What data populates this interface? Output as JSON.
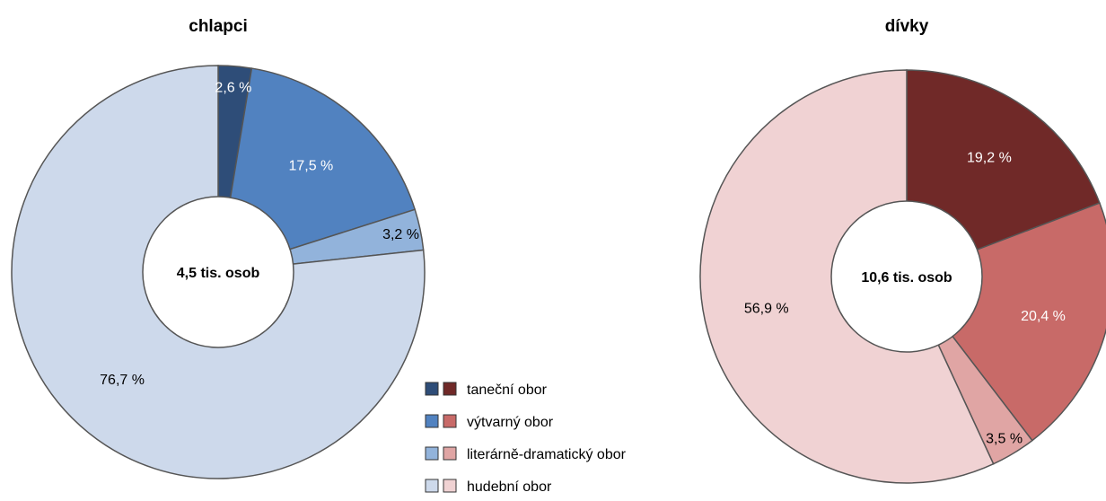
{
  "chart_data": [
    {
      "type": "pie",
      "title": "chlapci",
      "center_label": "4,5 tis. osob",
      "categories": [
        "taneční obor",
        "výtvarný obor",
        "literárně-dramatický obor",
        "hudební obor"
      ],
      "values": [
        2.6,
        17.5,
        3.2,
        76.7
      ],
      "value_labels": [
        "2,6 %",
        "17,5 %",
        "3,2 %",
        "76,7 %"
      ],
      "colors": [
        "#2e4d78",
        "#5182c0",
        "#92b3db",
        "#cdd9eb"
      ],
      "label_colors": [
        "#ffffff",
        "#ffffff",
        "#000000",
        "#000000"
      ]
    },
    {
      "type": "pie",
      "title": "dívky",
      "center_label": "10,6 tis. osob",
      "categories": [
        "taneční obor",
        "výtvarný obor",
        "literárně-dramatický obor",
        "hudební obor"
      ],
      "values": [
        19.2,
        20.4,
        3.5,
        56.9
      ],
      "value_labels": [
        "19,2 %",
        "20,4 %",
        "3,5 %",
        "56,9 %"
      ],
      "colors": [
        "#702928",
        "#c86a68",
        "#e0a5a4",
        "#f0d2d3"
      ],
      "label_colors": [
        "#ffffff",
        "#ffffff",
        "#000000",
        "#000000"
      ]
    }
  ],
  "legend": {
    "items": [
      "taneční obor",
      "výtvarný obor",
      "literárně-dramatický obor",
      "hudební obor"
    ]
  }
}
